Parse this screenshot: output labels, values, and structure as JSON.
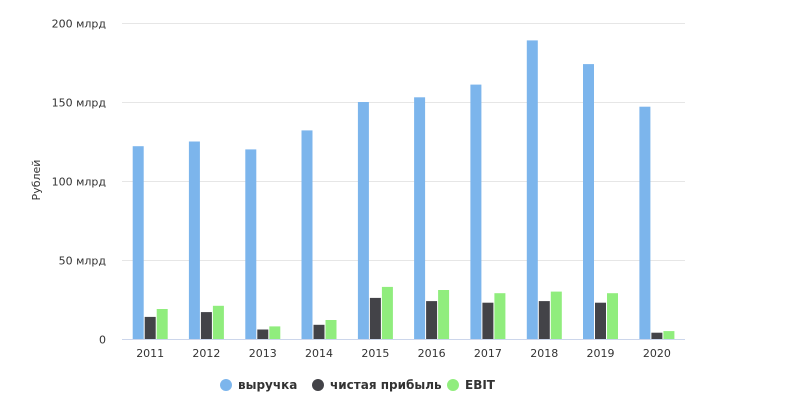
{
  "chart_data": {
    "type": "bar",
    "categories": [
      "2011",
      "2012",
      "2013",
      "2014",
      "2015",
      "2016",
      "2017",
      "2018",
      "2019",
      "2020"
    ],
    "series": [
      {
        "name": "выручка",
        "color": "#7cb5ec",
        "values": [
          122,
          125,
          120,
          132,
          150,
          153,
          161,
          189,
          174,
          147
        ]
      },
      {
        "name": "чистая прибыль",
        "color": "#434348",
        "values": [
          14,
          17,
          6,
          9,
          26,
          24,
          23,
          24,
          23,
          4
        ]
      },
      {
        "name": "EBIT",
        "color": "#90ed7d",
        "values": [
          19,
          21,
          8,
          12,
          33,
          31,
          29,
          30,
          29,
          5
        ]
      }
    ],
    "ylabel": "Рублей",
    "ylim": [
      0,
      200
    ],
    "yticks": [
      {
        "value": 0,
        "label": "0"
      },
      {
        "value": 50,
        "label": "50 млрд"
      },
      {
        "value": 100,
        "label": "100 млрд"
      },
      {
        "value": 150,
        "label": "150 млрд"
      },
      {
        "value": 200,
        "label": "200 млрд"
      }
    ],
    "grid": true,
    "legend": "bottom-center"
  }
}
